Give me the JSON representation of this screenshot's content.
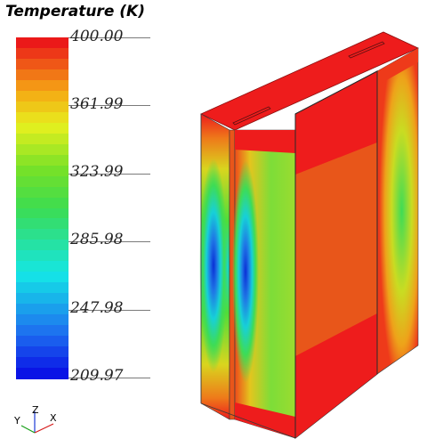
{
  "legend": {
    "title": "Temperature (K)",
    "ticks": [
      "400.00",
      "361.99",
      "323.99",
      "285.98",
      "247.98",
      "209.97"
    ],
    "min": 209.97,
    "max": 400.0,
    "bands": 32
  },
  "triad": {
    "x_label": "X",
    "y_label": "Y",
    "z_label": "Z"
  },
  "colors": {
    "hot": "#ee1c1c",
    "warm": "#e8561a",
    "cold": "#0a2fd6",
    "edge": "#2a2a2a"
  }
}
